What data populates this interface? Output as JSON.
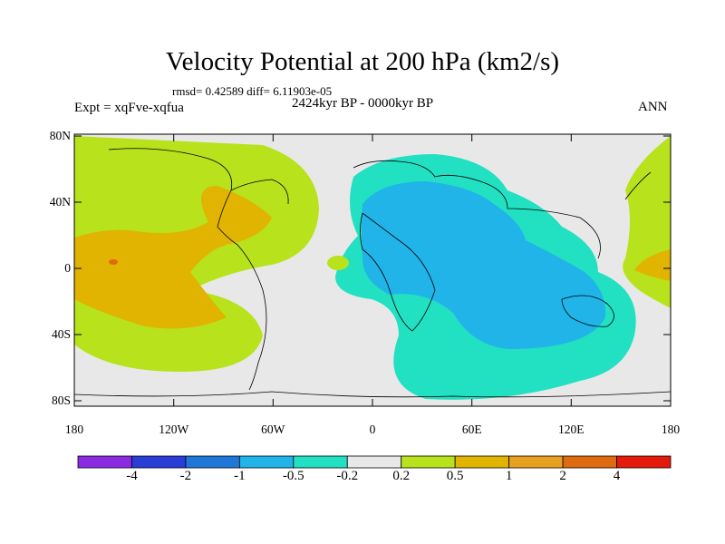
{
  "title": "Velocity Potential at 200 hPa (km2/s)",
  "stats": "rmsd= 0.42589  diff= 6.11903e-05",
  "experiment": "Expt = xqFve-xqfua",
  "period": "2424kyr BP - 0000kyr BP",
  "season": "ANN",
  "lat_labels": [
    "80N",
    "40N",
    "0",
    "40S",
    "80S"
  ],
  "lon_labels": [
    "180",
    "120W",
    "60W",
    "0",
    "60E",
    "120E",
    "180"
  ],
  "colorbar": {
    "colors": [
      "#8a2be2",
      "#2a3dd6",
      "#1f78d8",
      "#20b4e8",
      "#22e0c2",
      "#e8e8e8",
      "#b8e21c",
      "#e0b400",
      "#e8a020",
      "#e06a10",
      "#e41a0a"
    ],
    "labels": [
      "-4",
      "-2",
      "-1",
      "-0.5",
      "-0.2",
      "0.2",
      "0.5",
      "1",
      "2",
      "4"
    ]
  }
}
